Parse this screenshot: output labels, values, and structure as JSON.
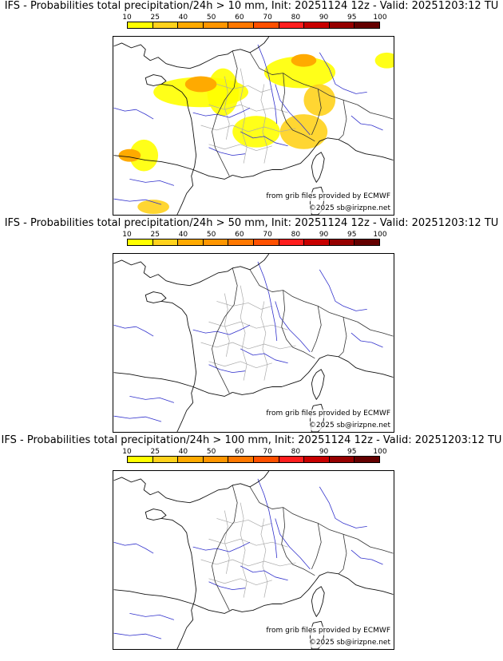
{
  "colorbar": {
    "ticks": [
      "10",
      "25",
      "40",
      "50",
      "60",
      "70",
      "80",
      "90",
      "95",
      "100"
    ],
    "colors": [
      "#ffff00",
      "#ffd21c",
      "#ffaa00",
      "#ff9600",
      "#ff7800",
      "#ff5000",
      "#ff1e1e",
      "#c80000",
      "#960000",
      "#640000"
    ]
  },
  "panels": [
    {
      "title": "IFS - Probabilities total precipitation/24h > 10 mm, Init: 20251124 12z - Valid: 20251203:12 TU",
      "source": "from grib files provided by ECMWF",
      "copyright": "©2025 sb@irizpne.net",
      "precip": true
    },
    {
      "title": "IFS - Probabilities total precipitation/24h > 50 mm, Init: 20251124 12z - Valid: 20251203:12 TU",
      "source": "from grib files provided by ECMWF",
      "copyright": "©2025 sb@irizpne.net",
      "precip": false
    },
    {
      "title": "IFS - Probabilities total precipitation/24h > 100 mm, Init: 20251124 12z - Valid: 20251203:12 TU",
      "source": "from grib files provided by ECMWF",
      "copyright": "©2025 sb@irizpne.net",
      "precip": false
    }
  ]
}
